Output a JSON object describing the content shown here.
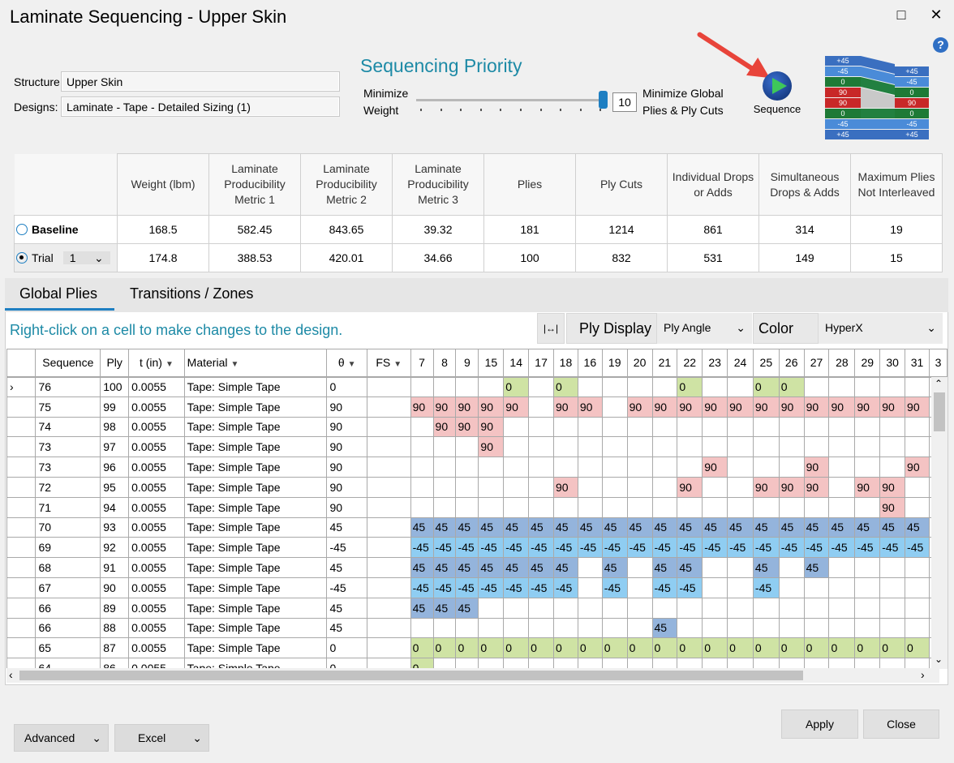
{
  "window": {
    "title": "Laminate Sequencing - Upper Skin",
    "maximize": "□",
    "close": "✕",
    "help": "?"
  },
  "structure": {
    "label": "Structure:",
    "value": "Upper Skin"
  },
  "designs": {
    "label": "Designs:",
    "value": "Laminate - Tape - Detailed Sizing (1)"
  },
  "priority": {
    "title": "Sequencing Priority",
    "left_label_1": "Minimize",
    "left_label_2": "Weight",
    "right_label_1": "Minimize Global",
    "right_label_2": "Plies & Ply Cuts",
    "value": "10",
    "level": 1.0
  },
  "sequence_button": {
    "label": "Sequence"
  },
  "mini_preview": {
    "left": [
      "+45",
      "-45",
      "0",
      "90",
      "90",
      "0",
      "-45",
      "+45"
    ],
    "right": [
      "+45",
      "-45",
      "0",
      "90",
      "0",
      "-45",
      "+45"
    ]
  },
  "metrics": {
    "headers": [
      "Weight (lbm)",
      "Laminate Producibility Metric 1",
      "Laminate Producibility Metric 2",
      "Laminate Producibility Metric 3",
      "Plies",
      "Ply Cuts",
      "Individual Drops or Adds",
      "Simultaneous Drops & Adds",
      "Maximum Plies Not Interleaved"
    ],
    "baseline": {
      "label": "Baseline",
      "values": [
        "168.5",
        "582.45",
        "843.65",
        "39.32",
        "181",
        "1214",
        "861",
        "314",
        "19"
      ]
    },
    "trial": {
      "label": "Trial",
      "selected": "1",
      "values": [
        "174.8",
        "388.53",
        "420.01",
        "34.66",
        "100",
        "832",
        "531",
        "149",
        "15"
      ]
    }
  },
  "tabs": [
    "Global Plies",
    "Transitions / Zones"
  ],
  "hint": "Right-click on a cell to make changes to the design.",
  "toolbar": {
    "fit_icon": "|↔|",
    "ply_display_label": "Ply Display",
    "ply_display_value": "Ply Angle",
    "color_by_label": "Color By",
    "color_by_value": "HyperX"
  },
  "grid": {
    "headers": [
      "Sequence",
      "Ply",
      "t (in)",
      "Material",
      "θ",
      "FS"
    ],
    "zones": [
      "7",
      "8",
      "9",
      "15",
      "14",
      "17",
      "18",
      "16",
      "19",
      "20",
      "21",
      "22",
      "23",
      "24",
      "25",
      "26",
      "27",
      "28",
      "29",
      "30",
      "31",
      "3"
    ],
    "rows": [
      {
        "seq": "76",
        "ply": "100",
        "t": "0.0055",
        "mat": "Tape: Simple Tape",
        "theta": "0",
        "cells": [
          "",
          "",
          "",
          "",
          "0",
          "",
          "0",
          "",
          "",
          "",
          "",
          "0",
          "",
          "",
          "0",
          "0",
          "",
          "",
          "",
          "",
          "",
          ""
        ]
      },
      {
        "seq": "75",
        "ply": "99",
        "t": "0.0055",
        "mat": "Tape: Simple Tape",
        "theta": "90",
        "cells": [
          "90",
          "90",
          "90",
          "90",
          "90",
          "",
          "90",
          "90",
          "",
          "90",
          "90",
          "90",
          "90",
          "90",
          "90",
          "90",
          "90",
          "90",
          "90",
          "90",
          "90",
          ""
        ]
      },
      {
        "seq": "74",
        "ply": "98",
        "t": "0.0055",
        "mat": "Tape: Simple Tape",
        "theta": "90",
        "cells": [
          "",
          "90",
          "90",
          "90",
          "",
          "",
          "",
          "",
          "",
          "",
          "",
          "",
          "",
          "",
          "",
          "",
          "",
          "",
          "",
          "",
          "",
          ""
        ]
      },
      {
        "seq": "73",
        "ply": "97",
        "t": "0.0055",
        "mat": "Tape: Simple Tape",
        "theta": "90",
        "cells": [
          "",
          "",
          "",
          "90",
          "",
          "",
          "",
          "",
          "",
          "",
          "",
          "",
          "",
          "",
          "",
          "",
          "",
          "",
          "",
          "",
          "",
          ""
        ]
      },
      {
        "seq": "73",
        "ply": "96",
        "t": "0.0055",
        "mat": "Tape: Simple Tape",
        "theta": "90",
        "cells": [
          "",
          "",
          "",
          "",
          "",
          "",
          "",
          "",
          "",
          "",
          "",
          "",
          "90",
          "",
          "",
          "",
          "90",
          "",
          "",
          "",
          "90",
          ""
        ]
      },
      {
        "seq": "72",
        "ply": "95",
        "t": "0.0055",
        "mat": "Tape: Simple Tape",
        "theta": "90",
        "cells": [
          "",
          "",
          "",
          "",
          "",
          "",
          "90",
          "",
          "",
          "",
          "",
          "90",
          "",
          "",
          "90",
          "90",
          "90",
          "",
          "90",
          "90",
          "",
          ""
        ]
      },
      {
        "seq": "71",
        "ply": "94",
        "t": "0.0055",
        "mat": "Tape: Simple Tape",
        "theta": "90",
        "cells": [
          "",
          "",
          "",
          "",
          "",
          "",
          "",
          "",
          "",
          "",
          "",
          "",
          "",
          "",
          "",
          "",
          "",
          "",
          "",
          "90",
          "",
          ""
        ]
      },
      {
        "seq": "70",
        "ply": "93",
        "t": "0.0055",
        "mat": "Tape: Simple Tape",
        "theta": "45",
        "cells": [
          "45",
          "45",
          "45",
          "45",
          "45",
          "45",
          "45",
          "45",
          "45",
          "45",
          "45",
          "45",
          "45",
          "45",
          "45",
          "45",
          "45",
          "45",
          "45",
          "45",
          "45",
          ""
        ]
      },
      {
        "seq": "69",
        "ply": "92",
        "t": "0.0055",
        "mat": "Tape: Simple Tape",
        "theta": "-45",
        "cells": [
          "-45",
          "-45",
          "-45",
          "-45",
          "-45",
          "-45",
          "-45",
          "-45",
          "-45",
          "-45",
          "-45",
          "-45",
          "-45",
          "-45",
          "-45",
          "-45",
          "-45",
          "-45",
          "-45",
          "-45",
          "-45",
          ""
        ]
      },
      {
        "seq": "68",
        "ply": "91",
        "t": "0.0055",
        "mat": "Tape: Simple Tape",
        "theta": "45",
        "cells": [
          "45",
          "45",
          "45",
          "45",
          "45",
          "45",
          "45",
          "",
          "45",
          "",
          "45",
          "45",
          "",
          "",
          "45",
          "",
          "45",
          "",
          "",
          "",
          "",
          ""
        ]
      },
      {
        "seq": "67",
        "ply": "90",
        "t": "0.0055",
        "mat": "Tape: Simple Tape",
        "theta": "-45",
        "cells": [
          "-45",
          "-45",
          "-45",
          "-45",
          "-45",
          "-45",
          "-45",
          "",
          "-45",
          "",
          "-45",
          "-45",
          "",
          "",
          "-45",
          "",
          "",
          "",
          "",
          "",
          "",
          ""
        ]
      },
      {
        "seq": "66",
        "ply": "89",
        "t": "0.0055",
        "mat": "Tape: Simple Tape",
        "theta": "45",
        "cells": [
          "45",
          "45",
          "45",
          "",
          "",
          "",
          "",
          "",
          "",
          "",
          "",
          "",
          "",
          "",
          "",
          "",
          "",
          "",
          "",
          "",
          "",
          ""
        ]
      },
      {
        "seq": "66",
        "ply": "88",
        "t": "0.0055",
        "mat": "Tape: Simple Tape",
        "theta": "45",
        "cells": [
          "",
          "",
          "",
          "",
          "",
          "",
          "",
          "",
          "",
          "",
          "45",
          "",
          "",
          "",
          "",
          "",
          "",
          "",
          "",
          "",
          "",
          ""
        ]
      },
      {
        "seq": "65",
        "ply": "87",
        "t": "0.0055",
        "mat": "Tape: Simple Tape",
        "theta": "0",
        "cells": [
          "0",
          "0",
          "0",
          "0",
          "0",
          "0",
          "0",
          "0",
          "0",
          "0",
          "0",
          "0",
          "0",
          "0",
          "0",
          "0",
          "0",
          "0",
          "0",
          "0",
          "0",
          ""
        ]
      },
      {
        "seq": "64",
        "ply": "86",
        "t": "0.0055",
        "mat": "Tape: Simple Tape",
        "theta": "0",
        "cells": [
          "0",
          "",
          "",
          "",
          "",
          "",
          "",
          "",
          "",
          "",
          "",
          "",
          "",
          "",
          "",
          "",
          "",
          "",
          "",
          "",
          "",
          ""
        ]
      }
    ]
  },
  "colors": {
    "0": "#cfe3a4",
    "90": "#f4c3c3",
    "45": "#94b4dc",
    "-45": "#8fcdf2"
  },
  "buttons": {
    "apply": "Apply",
    "close": "Close",
    "advanced": "Advanced",
    "excel": "Excel"
  }
}
